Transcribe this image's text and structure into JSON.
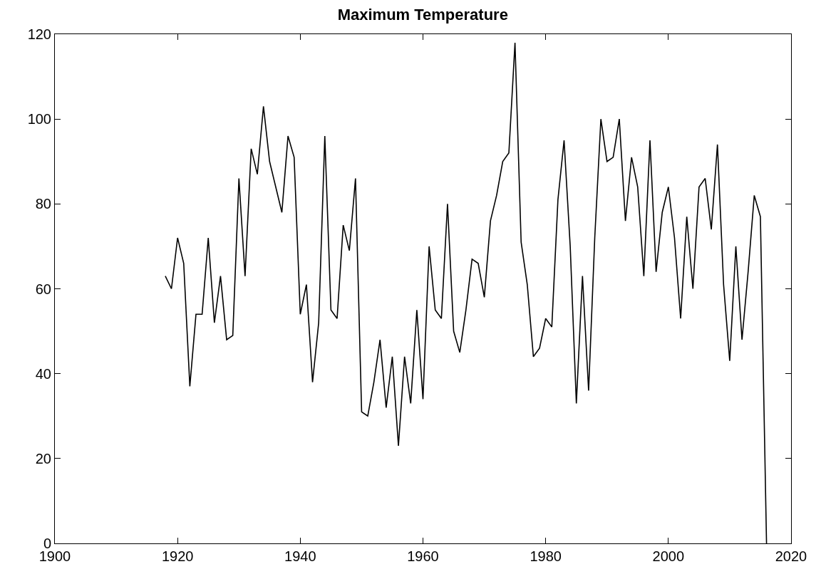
{
  "chart_data": {
    "type": "line",
    "title": "Maximum Temperature",
    "x": [
      1918,
      1919,
      1920,
      1921,
      1922,
      1923,
      1924,
      1925,
      1926,
      1927,
      1928,
      1929,
      1930,
      1931,
      1932,
      1933,
      1934,
      1935,
      1936,
      1937,
      1938,
      1939,
      1940,
      1941,
      1942,
      1943,
      1944,
      1945,
      1946,
      1947,
      1948,
      1949,
      1950,
      1951,
      1952,
      1953,
      1954,
      1955,
      1956,
      1957,
      1958,
      1959,
      1960,
      1961,
      1962,
      1963,
      1964,
      1965,
      1966,
      1967,
      1968,
      1969,
      1970,
      1971,
      1972,
      1973,
      1974,
      1975,
      1976,
      1977,
      1978,
      1979,
      1980,
      1981,
      1982,
      1983,
      1984,
      1985,
      1986,
      1987,
      1988,
      1989,
      1990,
      1991,
      1992,
      1993,
      1994,
      1995,
      1996,
      1997,
      1998,
      1999,
      2000,
      2001,
      2002,
      2003,
      2004,
      2005,
      2006,
      2007,
      2008,
      2009,
      2010,
      2011,
      2012,
      2013,
      2014,
      2015,
      2016
    ],
    "series": [
      {
        "color": "#000000",
        "values": [
          63,
          60,
          72,
          66,
          37,
          54,
          54,
          72,
          52,
          63,
          48,
          49,
          86,
          63,
          93,
          87,
          103,
          90,
          84,
          78,
          96,
          91,
          54,
          61,
          38,
          52,
          96,
          55,
          53,
          75,
          69,
          86,
          31,
          30,
          38,
          48,
          32,
          44,
          23,
          44,
          33,
          55,
          34,
          70,
          55,
          53,
          80,
          50,
          45,
          55,
          67,
          66,
          58,
          76,
          82,
          90,
          92,
          118,
          71,
          61,
          44,
          46,
          53,
          51,
          81,
          95,
          70,
          33,
          63,
          36,
          72,
          100,
          90,
          91,
          100,
          76,
          91,
          84,
          63,
          95,
          64,
          78,
          84,
          72,
          53,
          77,
          60,
          84,
          86,
          74,
          94,
          61,
          43,
          70,
          48,
          64,
          82,
          77,
          0
        ]
      }
    ],
    "xlim": [
      1900,
      2020
    ],
    "xticks": [
      1900,
      1920,
      1940,
      1960,
      1980,
      2000,
      2020
    ],
    "ylim": [
      0,
      120
    ],
    "yticks": [
      0,
      20,
      40,
      60,
      80,
      100,
      120
    ],
    "marker": "none",
    "line_style": "solid"
  }
}
